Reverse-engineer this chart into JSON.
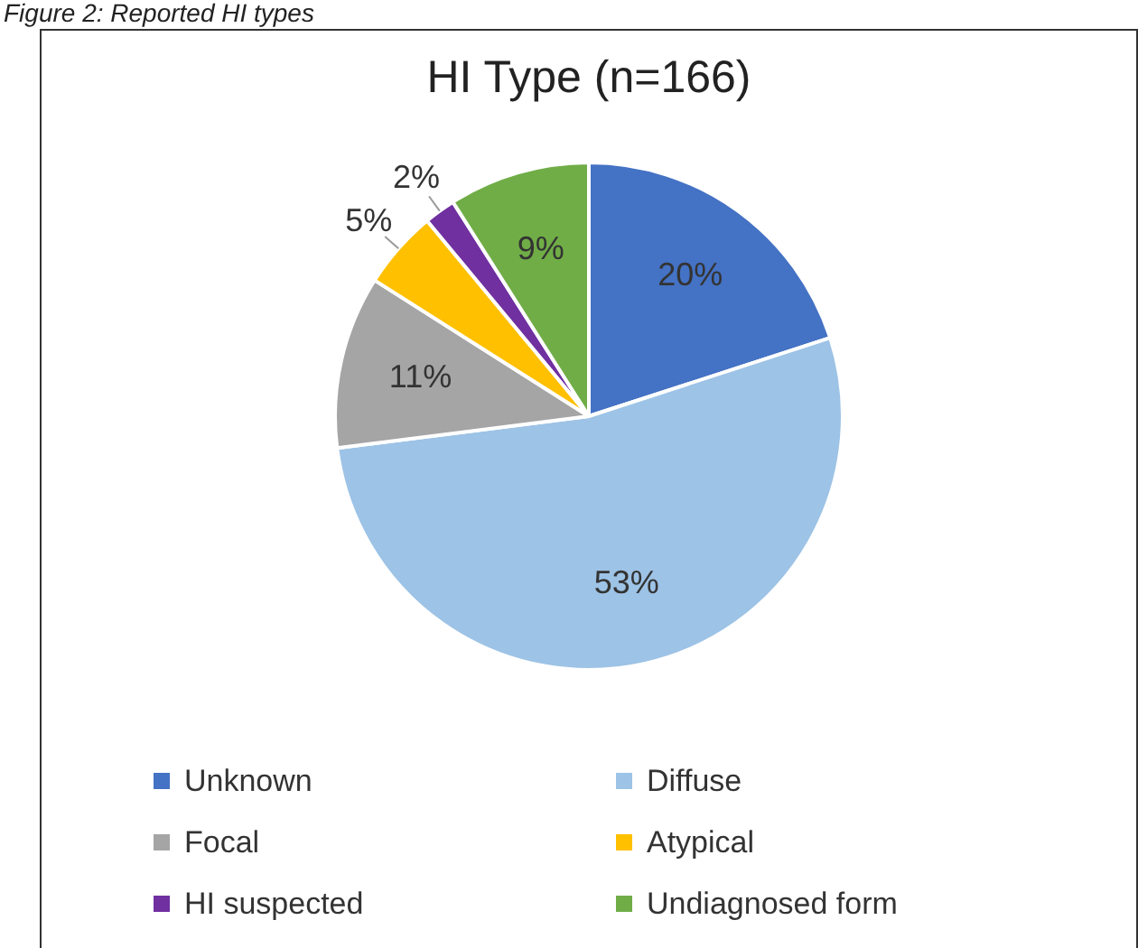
{
  "chart_data": {
    "type": "pie",
    "title": "HI Type (n=166)",
    "categories": [
      "Unknown",
      "Diffuse",
      "Focal",
      "Atypical",
      "HI suspected",
      "Undiagnosed form"
    ],
    "values": [
      20,
      53,
      11,
      5,
      2,
      9
    ],
    "colors": [
      "#4472c4",
      "#9dc3e6",
      "#a5a5a5",
      "#ffc000",
      "#7030a0",
      "#70ad47"
    ],
    "value_labels": [
      "20%",
      "53%",
      "11%",
      "5%",
      "2%",
      "9%"
    ],
    "legend": "bottom",
    "annotations": [
      "Figure 2: Reported HI types"
    ]
  }
}
